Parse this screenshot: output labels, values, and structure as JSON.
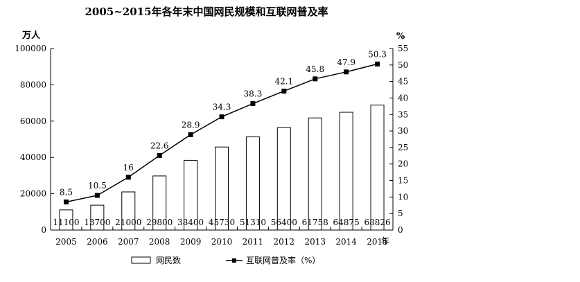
{
  "chart_data": {
    "type": "bar",
    "title": "2005~2015年各年末中国网民规模和互联网普及率",
    "x_unit": "年",
    "y_left_unit": "万人",
    "y_right_unit": "%",
    "categories": [
      "2005",
      "2006",
      "2007",
      "2008",
      "2009",
      "2010",
      "2011",
      "2012",
      "2013",
      "2014",
      "2015"
    ],
    "y_left_range": [
      0,
      100000
    ],
    "y_left_ticks": [
      "0",
      "20000",
      "40000",
      "60000",
      "80000",
      "100000"
    ],
    "y_right_range": [
      0,
      55
    ],
    "y_right_ticks": [
      "0",
      "5",
      "10",
      "15",
      "20",
      "25",
      "30",
      "35",
      "40",
      "45",
      "50",
      "55"
    ],
    "series": [
      {
        "name": "网民数",
        "kind": "bar",
        "axis": "left",
        "values": [
          11100,
          13700,
          21000,
          29800,
          38400,
          45730,
          51310,
          56400,
          61758,
          64875,
          68826
        ],
        "labels": [
          "11100",
          "13700",
          "21000",
          "29800",
          "38400",
          "45730",
          "51310",
          "56400",
          "61758",
          "64875",
          "68826"
        ]
      },
      {
        "name": "互联网普及率（%）",
        "kind": "line",
        "axis": "right",
        "values": [
          8.5,
          10.5,
          16,
          22.6,
          28.9,
          34.3,
          38.3,
          42.1,
          45.8,
          47.9,
          50.3
        ],
        "labels": [
          "8.5",
          "10.5",
          "16",
          "22.6",
          "28.9",
          "34.3",
          "38.3",
          "42.1",
          "45.8",
          "47.9",
          "50.3"
        ]
      }
    ],
    "legend_position": "bottom",
    "grid": false
  }
}
